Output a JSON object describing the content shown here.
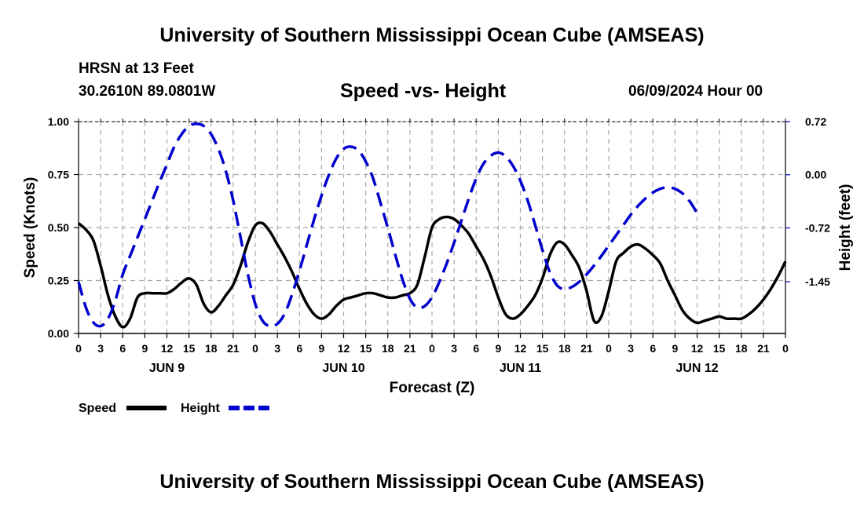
{
  "header": {
    "title": "University of Southern Mississippi Ocean Cube (AMSEAS)",
    "station": "HRSN at 13 Feet",
    "coords": "30.2610N  89.0801W",
    "subtitle": "Speed -vs- Height",
    "datetime": "06/09/2024 Hour 00"
  },
  "footer": {
    "title": "University of Southern Mississippi Ocean Cube (AMSEAS)"
  },
  "chart_data": {
    "type": "line",
    "xlabel": "Forecast (Z)",
    "ylabel": "Speed (Knots)",
    "y2label": "Height (feet)",
    "xlim": [
      0,
      96
    ],
    "ylim": [
      0,
      1
    ],
    "y2lim": [
      -2.15,
      0.72
    ],
    "x_ticks": [
      0,
      3,
      6,
      9,
      12,
      15,
      18,
      21,
      24,
      27,
      30,
      33,
      36,
      39,
      42,
      45,
      48,
      51,
      54,
      57,
      60,
      63,
      66,
      69,
      72,
      75,
      78,
      81,
      84,
      87,
      90,
      93,
      96
    ],
    "x_tick_labels": [
      "0",
      "3",
      "6",
      "9",
      "12",
      "15",
      "18",
      "21",
      "0",
      "3",
      "6",
      "9",
      "12",
      "15",
      "18",
      "21",
      "0",
      "3",
      "6",
      "9",
      "12",
      "15",
      "18",
      "21",
      "0",
      "3",
      "6",
      "9",
      "12",
      "15",
      "18",
      "21",
      "0"
    ],
    "y_ticks": [
      0.0,
      0.25,
      0.5,
      0.75,
      1.0
    ],
    "y_tick_labels": [
      "0.00",
      "0.25",
      "0.50",
      "0.75",
      "1.00"
    ],
    "y2_ticks": [
      0.72,
      0.0,
      -0.72,
      -1.45
    ],
    "y2_tick_labels": [
      "0.72",
      "0.00",
      "-0.72",
      "-1.45"
    ],
    "day_labels": [
      {
        "x": 12,
        "label": "JUN 9"
      },
      {
        "x": 36,
        "label": "JUN 10"
      },
      {
        "x": 60,
        "label": "JUN 11"
      },
      {
        "x": 84,
        "label": "JUN 12"
      }
    ],
    "grid": true,
    "legend": "bottom-left",
    "series": [
      {
        "name": "Speed",
        "axis": "left",
        "color": "#000000",
        "dash": "solid",
        "points": [
          [
            0,
            0.52
          ],
          [
            1,
            0.49
          ],
          [
            2,
            0.44
          ],
          [
            3,
            0.32
          ],
          [
            4,
            0.18
          ],
          [
            5,
            0.08
          ],
          [
            6,
            0.03
          ],
          [
            7,
            0.07
          ],
          [
            8,
            0.17
          ],
          [
            9,
            0.19
          ],
          [
            10,
            0.19
          ],
          [
            11,
            0.19
          ],
          [
            12,
            0.19
          ],
          [
            13,
            0.21
          ],
          [
            14,
            0.24
          ],
          [
            15,
            0.26
          ],
          [
            16,
            0.23
          ],
          [
            17,
            0.14
          ],
          [
            18,
            0.1
          ],
          [
            19,
            0.13
          ],
          [
            20,
            0.18
          ],
          [
            21,
            0.23
          ],
          [
            22,
            0.32
          ],
          [
            23,
            0.43
          ],
          [
            24,
            0.51
          ],
          [
            25,
            0.52
          ],
          [
            26,
            0.48
          ],
          [
            27,
            0.42
          ],
          [
            28,
            0.36
          ],
          [
            29,
            0.29
          ],
          [
            30,
            0.21
          ],
          [
            31,
            0.14
          ],
          [
            32,
            0.09
          ],
          [
            33,
            0.07
          ],
          [
            34,
            0.09
          ],
          [
            35,
            0.13
          ],
          [
            36,
            0.16
          ],
          [
            37,
            0.17
          ],
          [
            38,
            0.18
          ],
          [
            39,
            0.19
          ],
          [
            40,
            0.19
          ],
          [
            41,
            0.18
          ],
          [
            42,
            0.17
          ],
          [
            43,
            0.17
          ],
          [
            44,
            0.18
          ],
          [
            45,
            0.19
          ],
          [
            46,
            0.23
          ],
          [
            47,
            0.36
          ],
          [
            48,
            0.5
          ],
          [
            49,
            0.54
          ],
          [
            50,
            0.55
          ],
          [
            51,
            0.54
          ],
          [
            52,
            0.51
          ],
          [
            53,
            0.47
          ],
          [
            54,
            0.41
          ],
          [
            55,
            0.35
          ],
          [
            56,
            0.27
          ],
          [
            57,
            0.17
          ],
          [
            58,
            0.09
          ],
          [
            59,
            0.07
          ],
          [
            60,
            0.09
          ],
          [
            61,
            0.13
          ],
          [
            62,
            0.18
          ],
          [
            63,
            0.26
          ],
          [
            64,
            0.37
          ],
          [
            65,
            0.43
          ],
          [
            66,
            0.42
          ],
          [
            67,
            0.37
          ],
          [
            68,
            0.31
          ],
          [
            69,
            0.2
          ],
          [
            70,
            0.06
          ],
          [
            71,
            0.08
          ],
          [
            72,
            0.2
          ],
          [
            73,
            0.34
          ],
          [
            74,
            0.38
          ],
          [
            75,
            0.41
          ],
          [
            76,
            0.42
          ],
          [
            77,
            0.4
          ],
          [
            78,
            0.37
          ],
          [
            79,
            0.33
          ],
          [
            80,
            0.25
          ],
          [
            81,
            0.18
          ],
          [
            82,
            0.11
          ],
          [
            83,
            0.07
          ],
          [
            84,
            0.05
          ],
          [
            85,
            0.06
          ],
          [
            86,
            0.07
          ],
          [
            87,
            0.08
          ],
          [
            88,
            0.07
          ],
          [
            89,
            0.07
          ],
          [
            90,
            0.07
          ],
          [
            91,
            0.09
          ],
          [
            92,
            0.12
          ],
          [
            93,
            0.16
          ],
          [
            94,
            0.21
          ],
          [
            95,
            0.27
          ],
          [
            96,
            0.34
          ]
        ]
      },
      {
        "name": "Height",
        "axis": "right",
        "color": "#0000CC",
        "dash": "dashed",
        "points": [
          [
            0,
            -1.45
          ],
          [
            1,
            -1.8
          ],
          [
            2,
            -2.0
          ],
          [
            3,
            -2.05
          ],
          [
            4,
            -1.95
          ],
          [
            5,
            -1.7
          ],
          [
            6,
            -1.35
          ],
          [
            7,
            -1.1
          ],
          [
            8,
            -0.85
          ],
          [
            9,
            -0.6
          ],
          [
            10,
            -0.35
          ],
          [
            11,
            -0.1
          ],
          [
            12,
            0.14
          ],
          [
            13,
            0.38
          ],
          [
            14,
            0.55
          ],
          [
            15,
            0.66
          ],
          [
            16,
            0.69
          ],
          [
            17,
            0.66
          ],
          [
            18,
            0.55
          ],
          [
            19,
            0.35
          ],
          [
            20,
            0.05
          ],
          [
            21,
            -0.35
          ],
          [
            22,
            -0.85
          ],
          [
            23,
            -1.35
          ],
          [
            24,
            -1.75
          ],
          [
            25,
            -1.98
          ],
          [
            26,
            -2.05
          ],
          [
            27,
            -2.02
          ],
          [
            28,
            -1.88
          ],
          [
            29,
            -1.62
          ],
          [
            30,
            -1.3
          ],
          [
            31,
            -0.95
          ],
          [
            32,
            -0.6
          ],
          [
            33,
            -0.28
          ],
          [
            34,
            0.0
          ],
          [
            35,
            0.22
          ],
          [
            36,
            0.35
          ],
          [
            37,
            0.38
          ],
          [
            38,
            0.33
          ],
          [
            39,
            0.18
          ],
          [
            40,
            -0.05
          ],
          [
            41,
            -0.38
          ],
          [
            42,
            -0.72
          ],
          [
            43,
            -1.08
          ],
          [
            44,
            -1.42
          ],
          [
            45,
            -1.68
          ],
          [
            46,
            -1.8
          ],
          [
            47,
            -1.78
          ],
          [
            48,
            -1.66
          ],
          [
            49,
            -1.45
          ],
          [
            50,
            -1.2
          ],
          [
            51,
            -0.92
          ],
          [
            52,
            -0.62
          ],
          [
            53,
            -0.32
          ],
          [
            54,
            -0.05
          ],
          [
            55,
            0.15
          ],
          [
            56,
            0.26
          ],
          [
            57,
            0.3
          ],
          [
            58,
            0.25
          ],
          [
            59,
            0.12
          ],
          [
            60,
            -0.08
          ],
          [
            61,
            -0.35
          ],
          [
            62,
            -0.68
          ],
          [
            63,
            -1.02
          ],
          [
            64,
            -1.32
          ],
          [
            65,
            -1.5
          ],
          [
            66,
            -1.55
          ],
          [
            67,
            -1.52
          ],
          [
            68,
            -1.45
          ],
          [
            69,
            -1.35
          ],
          [
            70,
            -1.23
          ],
          [
            71,
            -1.1
          ],
          [
            72,
            -0.96
          ],
          [
            73,
            -0.82
          ],
          [
            74,
            -0.68
          ],
          [
            75,
            -0.54
          ],
          [
            76,
            -0.42
          ],
          [
            77,
            -0.32
          ],
          [
            78,
            -0.24
          ],
          [
            79,
            -0.19
          ],
          [
            80,
            -0.17
          ],
          [
            81,
            -0.19
          ],
          [
            82,
            -0.25
          ],
          [
            83,
            -0.36
          ],
          [
            84,
            -0.52
          ]
        ]
      }
    ]
  }
}
